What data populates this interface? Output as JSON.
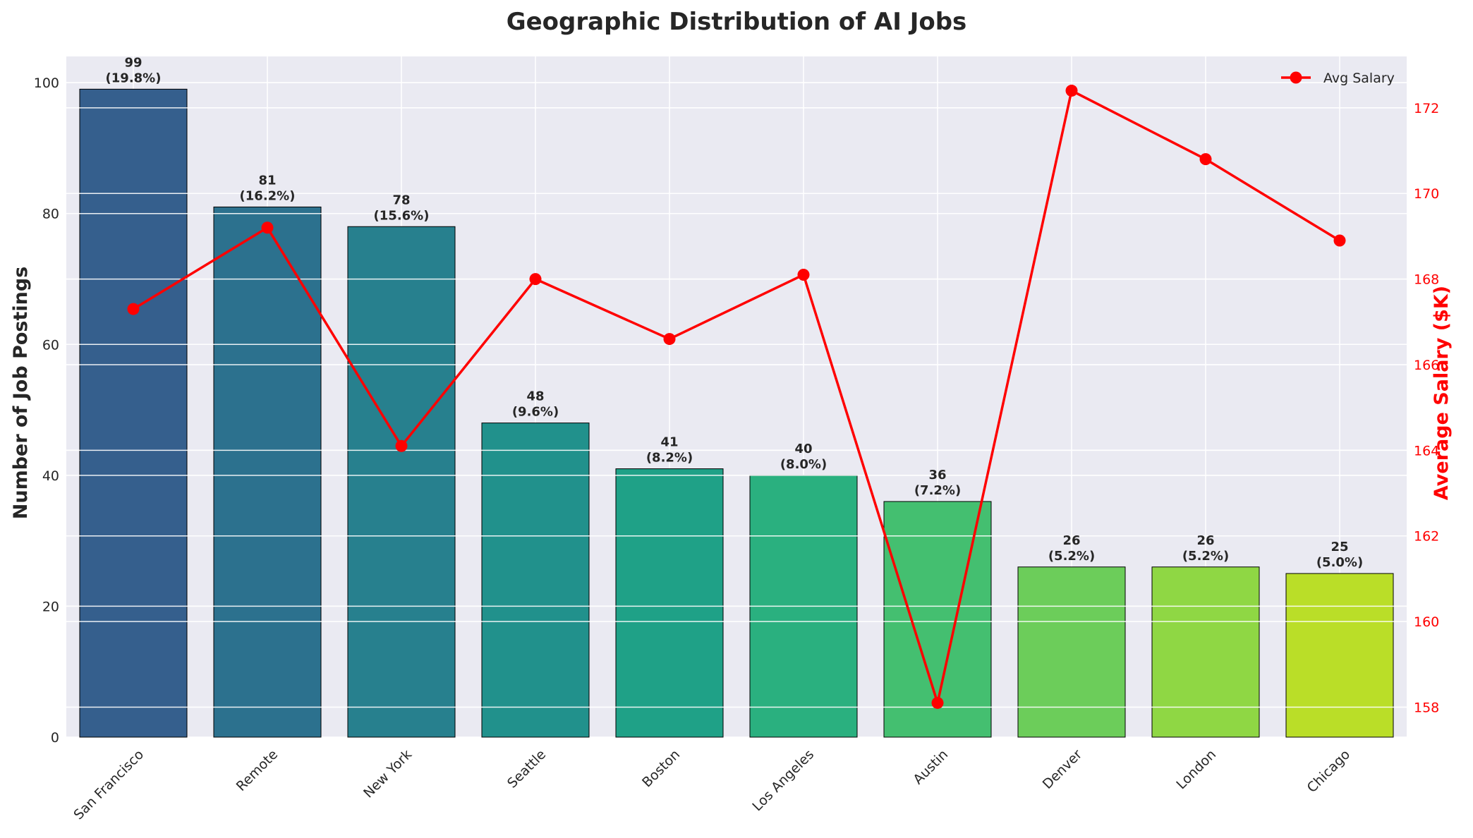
{
  "chart_data": {
    "type": "bar",
    "title": "Geographic Distribution of AI Jobs",
    "xlabel": "",
    "ylabel": "Number of Job Postings",
    "y2label": "Average Salary ($K)",
    "categories": [
      "San Francisco",
      "Remote",
      "New York",
      "Seattle",
      "Boston",
      "Los Angeles",
      "Austin",
      "Denver",
      "London",
      "Chicago"
    ],
    "series": [
      {
        "name": "",
        "type": "bar",
        "axis": "left",
        "values": [
          99,
          81,
          78,
          48,
          41,
          40,
          36,
          26,
          26,
          25
        ],
        "data_labels": [
          "99\n(19.8%)",
          "81\n(16.2%)",
          "78\n(15.6%)",
          "48\n(9.6%)",
          "41\n(8.2%)",
          "40\n(8.0%)",
          "36\n(7.2%)",
          "26\n(5.2%)",
          "26\n(5.2%)",
          "25\n(5.0%)"
        ],
        "colors": [
          "#355f8d",
          "#2c718e",
          "#27808e",
          "#21918c",
          "#1fa187",
          "#2ab07f",
          "#44bf70",
          "#6ccd5a",
          "#8fd744",
          "#bade28"
        ]
      },
      {
        "name": "Avg Salary",
        "type": "line",
        "axis": "right",
        "color": "#ff0000",
        "values": [
          167.3,
          169.2,
          164.1,
          168.0,
          166.6,
          168.1,
          158.1,
          172.4,
          170.8,
          168.9
        ]
      }
    ],
    "ylim": [
      0,
      104
    ],
    "y2lim": [
      157.3,
      173.2
    ],
    "yticks": [
      0,
      20,
      40,
      60,
      80,
      100
    ],
    "y2ticks": [
      158,
      160,
      162,
      164,
      166,
      168,
      170,
      172
    ],
    "grid": true,
    "legend": "top-right"
  }
}
